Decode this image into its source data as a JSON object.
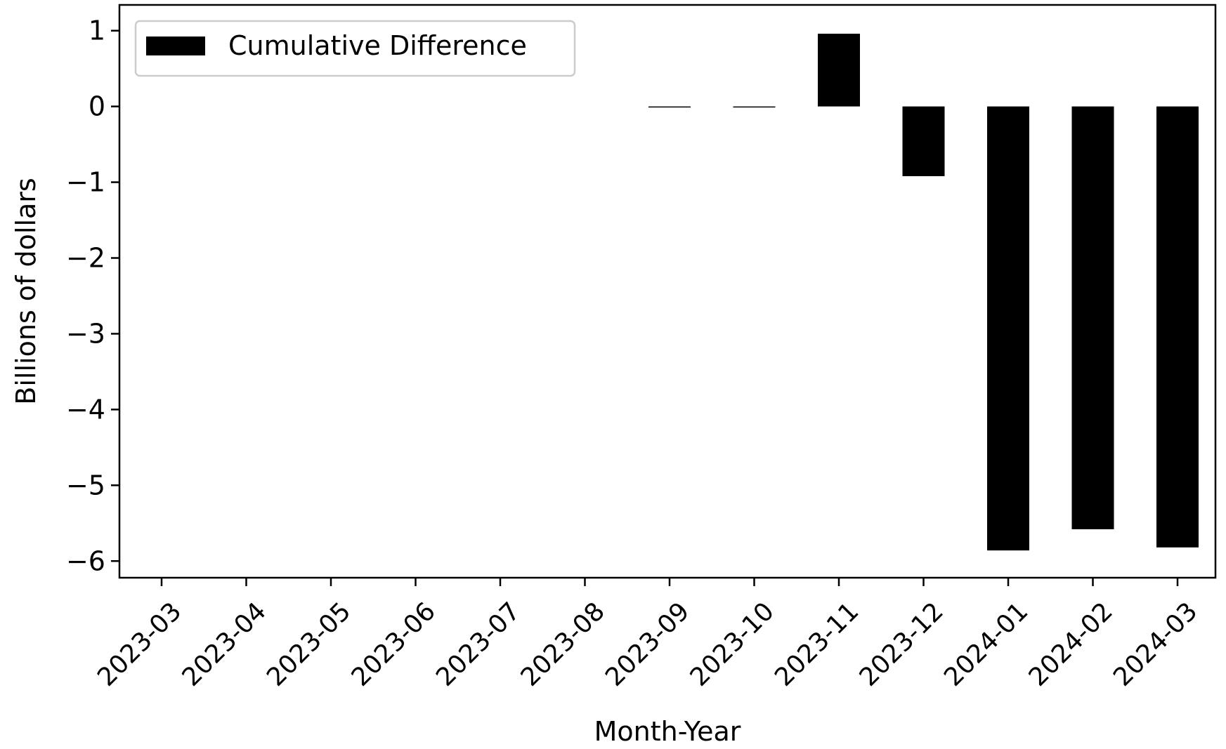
{
  "chart_data": {
    "type": "bar",
    "title": "",
    "xlabel": "Month-Year",
    "ylabel": "Billions of dollars",
    "categories": [
      "2023-03",
      "2023-04",
      "2023-05",
      "2023-06",
      "2023-07",
      "2023-08",
      "2023-09",
      "2023-10",
      "2023-11",
      "2023-12",
      "2024-01",
      "2024-02",
      "2024-03"
    ],
    "series": [
      {
        "name": "Cumulative Difference",
        "values": [
          0,
          0,
          0,
          0,
          0,
          0,
          -0.01,
          -0.01,
          0.96,
          -0.92,
          -5.86,
          -5.58,
          -5.82
        ],
        "color": "#000000"
      }
    ],
    "ylim": [
      -6.22,
      1.34
    ],
    "yticks": [
      1,
      0,
      -1,
      -2,
      -3,
      -4,
      -5,
      -6
    ],
    "ytick_labels": [
      "1",
      "0",
      "−1",
      "−2",
      "−3",
      "−4",
      "−5",
      "−6"
    ],
    "grid": false,
    "legend_position": "top-left"
  }
}
